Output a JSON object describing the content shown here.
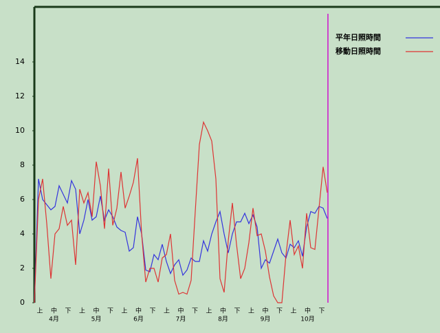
{
  "chart_data": {
    "type": "line",
    "ylim": [
      0,
      17.2
    ],
    "yticks": [
      0,
      2,
      4,
      6,
      8,
      10,
      12,
      14
    ],
    "xtick_labels": [
      "上",
      "中",
      "下",
      "上",
      "中",
      "下",
      "上",
      "中",
      "下",
      "上",
      "中",
      "下",
      "上",
      "中",
      "下",
      "上",
      "中",
      "下",
      "上",
      "中",
      "下"
    ],
    "month_labels": [
      "4月",
      "5月",
      "6月",
      "7月",
      "8月",
      "9月",
      "10月"
    ],
    "legend": "top-right",
    "series": [
      {
        "name": "平年日照時間",
        "color": "#3333dd",
        "values": [
          0,
          7.2,
          6,
          5.7,
          5.4,
          5.6,
          6.8,
          6.3,
          5.8,
          7.1,
          6.6,
          4,
          4.8,
          6,
          4.8,
          5,
          6.2,
          4.8,
          5.4,
          5,
          4.4,
          4.2,
          4.1,
          3,
          3.2,
          5,
          4,
          1.9,
          1.8,
          2.8,
          2.5,
          3.4,
          2.4,
          1.7,
          2.2,
          2.5,
          1.6,
          1.9,
          2.6,
          2.4,
          2.4,
          3.6,
          3,
          4,
          4.7,
          5.3,
          4,
          2.9,
          4,
          4.7,
          4.7,
          5.2,
          4.6,
          5.1,
          4.4,
          2,
          2.5,
          2.3,
          3,
          3.7,
          2.9,
          2.6,
          3.4,
          3.2,
          3.6,
          2.7,
          4.4,
          5.3,
          5.2,
          5.6,
          5.5,
          4.9
        ]
      },
      {
        "name": "移動日照時間",
        "color": "#dd3333",
        "values": [
          0,
          6,
          7.2,
          4.6,
          1.4,
          4,
          4.3,
          5.6,
          4.5,
          4.8,
          2.2,
          6.6,
          5.8,
          6.4,
          5,
          8.2,
          6.8,
          4.3,
          7.8,
          4.5,
          5.5,
          7.6,
          5.5,
          6.2,
          7,
          8.4,
          4,
          1.2,
          2,
          2,
          1.2,
          2.6,
          2.8,
          4,
          1.3,
          0.5,
          0.6,
          0.5,
          1.3,
          5.3,
          9.2,
          10.5,
          10,
          9.4,
          7.2,
          1.4,
          0.6,
          3.6,
          5.8,
          3.4,
          1.4,
          2,
          3.5,
          5.5,
          3.9,
          4,
          3,
          1.5,
          0.4,
          0,
          0,
          2.8,
          4.8,
          2.8,
          3.3,
          2,
          5.2,
          3.2,
          3.1,
          5.5,
          7.9,
          6.4
        ]
      }
    ]
  }
}
